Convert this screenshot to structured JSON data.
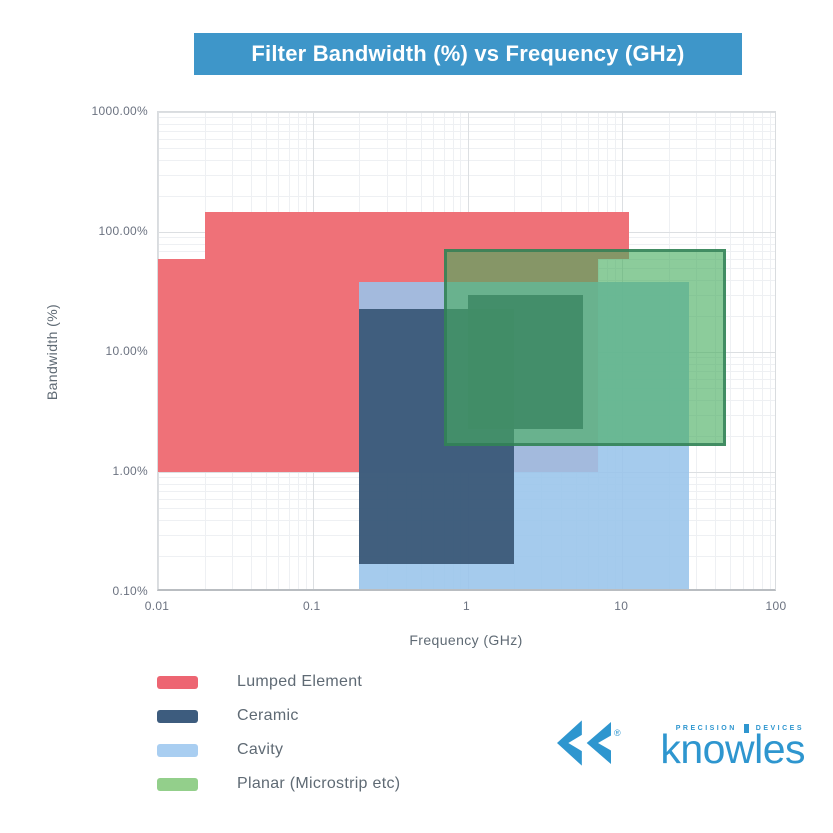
{
  "title": "Filter Bandwidth (%) vs Frequency (GHz)",
  "banner": {
    "bg": "#3e96c9",
    "text_color": "#ffffff"
  },
  "chart_data": {
    "type": "area",
    "variant": "overlapping translucent rectangular regions on log-log axes",
    "title": "Filter Bandwidth (%) vs Frequency (GHz)",
    "xlabel": "Frequency (GHz)",
    "ylabel": "Bandwidth (%)",
    "x_scale": "log",
    "y_scale": "log",
    "xlim": [
      0.01,
      100
    ],
    "ylim": [
      0.1,
      1000
    ],
    "x_ticks": [
      {
        "label": "0.01",
        "value": 0.01
      },
      {
        "label": "0.1",
        "value": 0.1
      },
      {
        "label": "1",
        "value": 1
      },
      {
        "label": "10",
        "value": 10
      },
      {
        "label": "100",
        "value": 100
      }
    ],
    "y_ticks": [
      {
        "label": "1000.00%",
        "value": 1000
      },
      {
        "label": "100.00%",
        "value": 100
      },
      {
        "label": "10.00%",
        "value": 10
      },
      {
        "label": "1.00%",
        "value": 1
      },
      {
        "label": "0.10%",
        "value": 0.1
      }
    ],
    "grid": {
      "major_color": "#dcdfe2",
      "minor_color": "#eef0f3"
    },
    "series": [
      {
        "name": "Lumped Element",
        "fill": "#ef7178",
        "opacity": 1.0,
        "regions": [
          {
            "f_ghz": [
              0.02,
              11
            ],
            "bw_pct": [
              60,
              147
            ]
          },
          {
            "f_ghz": [
              0.01,
              7
            ],
            "bw_pct": [
              1,
              60
            ]
          }
        ]
      },
      {
        "name": "Cavity",
        "fill": "#99c4ea",
        "opacity": 0.88,
        "regions": [
          {
            "f_ghz": [
              0.2,
              27
            ],
            "bw_pct": [
              0.1,
              38
            ]
          }
        ]
      },
      {
        "name": "Ceramic",
        "fill": "#3b5878",
        "opacity": 0.95,
        "regions": [
          {
            "f_ghz": [
              0.2,
              2
            ],
            "bw_pct": [
              0.17,
              23
            ]
          },
          {
            "f_ghz": [
              1,
              5.6
            ],
            "bw_pct": [
              2.3,
              30
            ]
          }
        ]
      },
      {
        "name": "Planar (Microstrip etc)",
        "fill": "#46ad5e",
        "opacity": 0.62,
        "border": "#2f7d55",
        "border_opacity": 0.8,
        "regions": [
          {
            "f_ghz": [
              0.7,
              47
            ],
            "bw_pct": [
              1.65,
              72
            ]
          }
        ]
      }
    ]
  },
  "legend": {
    "items": [
      {
        "label": "Lumped Element",
        "swatch": "#ed6572"
      },
      {
        "label": "Ceramic",
        "swatch": "#3d5c7e"
      },
      {
        "label": "Cavity",
        "swatch": "#a9cef1"
      },
      {
        "label": "Planar (Microstrip etc)",
        "swatch": "#93cf8b"
      }
    ]
  },
  "logo": {
    "brand": "knowles",
    "tagline_left": "PRECISION",
    "tagline_right": "DEVICES",
    "registered": "®",
    "color": "#2e96cf"
  }
}
